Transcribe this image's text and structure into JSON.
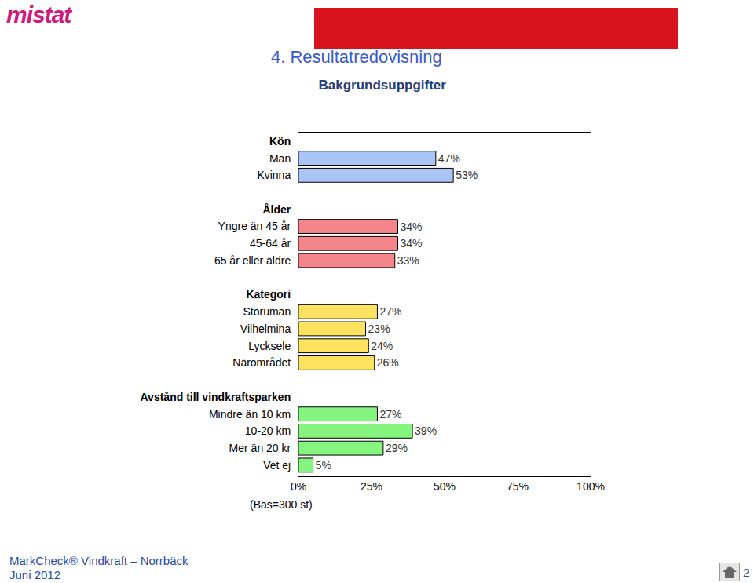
{
  "page": {
    "logo": "mistat",
    "heading": "4. Resultatredovisning",
    "footer": [
      "MarkCheck® Vindkraft – Norrbäck",
      "Juni 2012"
    ],
    "page_number": "2"
  },
  "chart_data": {
    "type": "bar",
    "orientation": "horizontal",
    "title": "Bakgrundsuppgifter",
    "annotation": "(Bas=300 st)",
    "series": [
      {
        "name": "Kön",
        "color": "#a9c4f5",
        "categories": [
          "Man",
          "Kvinna"
        ],
        "values": [
          47,
          53
        ],
        "value_labels": [
          "47%",
          "53%"
        ]
      },
      {
        "name": "Ålder",
        "color": "#f4858a",
        "categories": [
          "Yngre än 45 år",
          "45-64 år",
          "65 år eller äldre"
        ],
        "values": [
          34,
          34,
          33
        ],
        "value_labels": [
          "34%",
          "34%",
          "33%"
        ]
      },
      {
        "name": "Kategori",
        "color": "#fde35f",
        "categories": [
          "Storuman",
          "Vilhelmina",
          "Lycksele",
          "Närområdet"
        ],
        "values": [
          27,
          23,
          24,
          26
        ],
        "value_labels": [
          "27%",
          "23%",
          "24%",
          "26%"
        ]
      },
      {
        "name": "Avstånd till vindkraftsparken",
        "color": "#85f57f",
        "categories": [
          "Mindre än 10 km",
          "10-20 km",
          "Mer än 20 kr",
          "Vet ej"
        ],
        "values": [
          27,
          39,
          29,
          5
        ],
        "value_labels": [
          "27%",
          "39%",
          "29%",
          "5%"
        ]
      }
    ],
    "xlim": [
      0,
      100
    ],
    "xticks": [
      {
        "value": 0,
        "label": "0%"
      },
      {
        "value": 25,
        "label": "25%"
      },
      {
        "value": 50,
        "label": "50%"
      },
      {
        "value": 75,
        "label": "75%"
      },
      {
        "value": 100,
        "label": "100%"
      }
    ],
    "grid": true,
    "data_labels": true
  }
}
